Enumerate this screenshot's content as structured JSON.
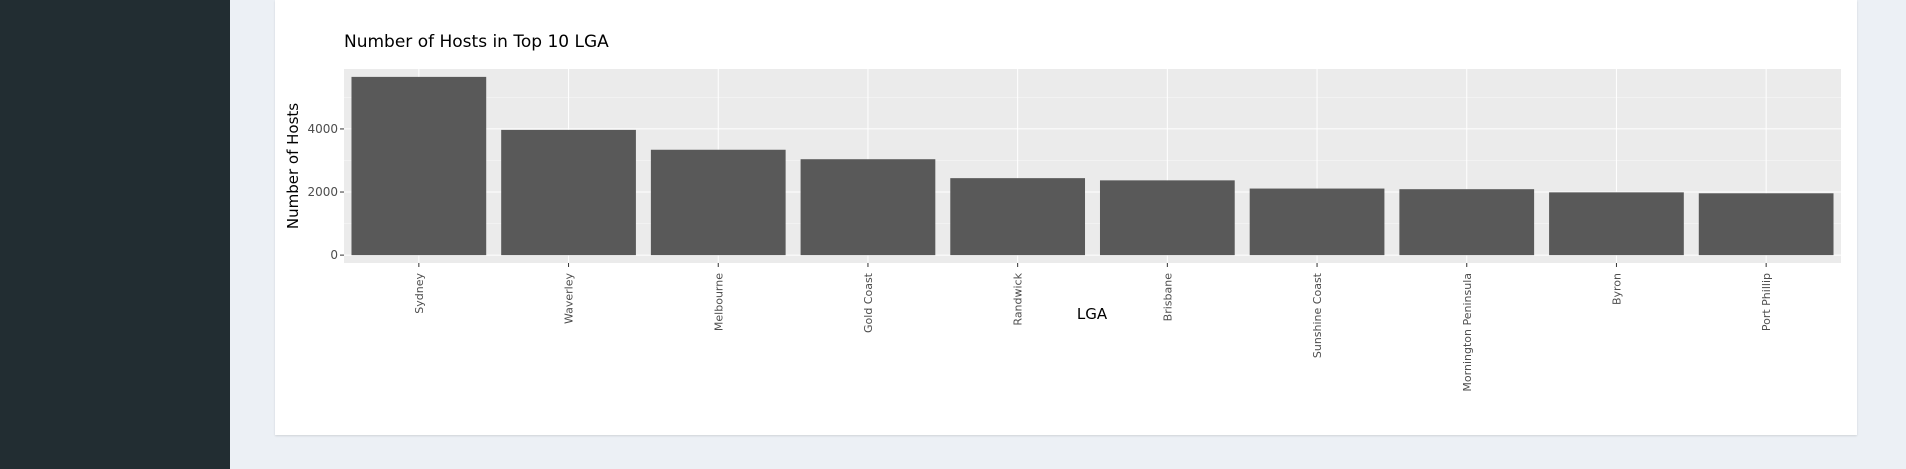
{
  "layout": {
    "sidebar_color": "#222d32",
    "background_color": "#ecf0f5",
    "panel_color": "#ffffff"
  },
  "chart_data": {
    "type": "bar",
    "title": "Number of Hosts in Top 10 LGA",
    "xlabel": "LGA",
    "ylabel": "Number of Hosts",
    "categories": [
      "Sydney",
      "Waverley",
      "Melbourne",
      "Gold Coast",
      "Randwick",
      "Brisbane",
      "Sunshine Coast",
      "Mornington Peninsula",
      "Byron",
      "Port Phillip"
    ],
    "values": [
      5650,
      3970,
      3340,
      3040,
      2440,
      2370,
      2110,
      2090,
      1990,
      1960
    ],
    "ylim": [
      -250,
      5900
    ],
    "yticks": [
      0,
      2000,
      4000
    ],
    "ytick_labels": [
      "0",
      "2000",
      "4000"
    ],
    "grid": true,
    "colors": {
      "bar": "#595959",
      "panel_background": "#ebebeb",
      "grid_major": "#ffffff"
    }
  }
}
